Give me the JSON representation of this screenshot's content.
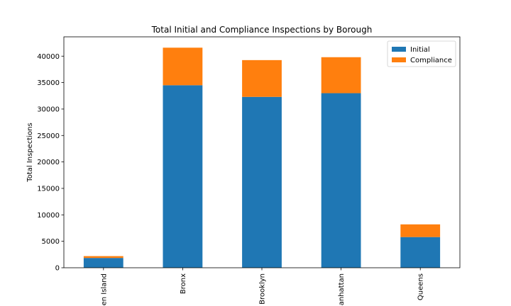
{
  "chart_data": {
    "type": "bar",
    "stacked": true,
    "title": "Total Initial and Compliance Inspections by Borough",
    "xlabel": "",
    "ylabel": "Total Inspections",
    "categories": [
      "en Island",
      "Bronx",
      "Brooklyn",
      "anhattan",
      "Queens"
    ],
    "series": [
      {
        "name": "Initial",
        "color": "#1f77b4",
        "values": [
          1850,
          34500,
          32300,
          33000,
          5800
        ]
      },
      {
        "name": "Compliance",
        "color": "#ff7f0e",
        "values": [
          350,
          7100,
          6950,
          6800,
          2400
        ]
      }
    ],
    "ylim": [
      0,
      43650
    ],
    "yticks": [
      0,
      5000,
      10000,
      15000,
      20000,
      25000,
      30000,
      35000,
      40000
    ],
    "grid": false,
    "legend_position": "top-right"
  }
}
